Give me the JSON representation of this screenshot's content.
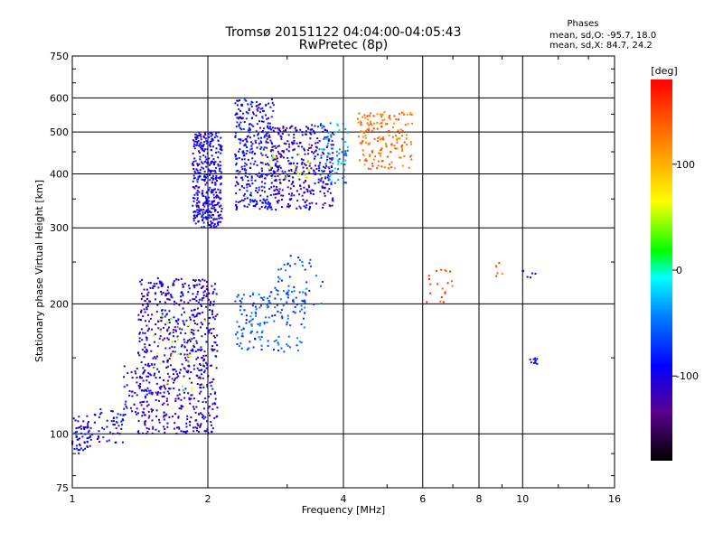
{
  "chart_data": {
    "type": "scatter",
    "title": "Tromsø 20151122 04:04:00-04:05:43",
    "subtitle": "RwPretec (8p)",
    "xlabel": "Frequency [MHz]",
    "ylabel": "Stationary phase Virtual Height [km]",
    "x_scale": "log",
    "y_scale": "log",
    "xlim": [
      1,
      16
    ],
    "ylim": [
      75,
      750
    ],
    "x_ticks": [
      1,
      2,
      4,
      6,
      8,
      10,
      16
    ],
    "x_tick_labels": [
      "1",
      "2",
      "4",
      "6",
      "8",
      "10",
      "16"
    ],
    "y_ticks": [
      75,
      100,
      200,
      300,
      400,
      500,
      600,
      750
    ],
    "y_tick_labels": [
      "75",
      "100",
      "200",
      "300",
      "400",
      "500",
      "600",
      "750"
    ],
    "grid": true,
    "annotation": {
      "title": "Phases",
      "line1": "mean, sd,O: -95.7, 18.0",
      "line2": "mean, sd,X:  84.7, 24.2"
    },
    "colorbar": {
      "label": "[deg]",
      "range": [
        -180,
        180
      ],
      "ticks": [
        100,
        0,
        -100
      ],
      "tick_labels": [
        "100",
        "0",
        "-100"
      ]
    },
    "clusters": [
      {
        "f": [
          1.0,
          1.1
        ],
        "h": [
          90,
          110
        ],
        "phase": -100,
        "n": 60
      },
      {
        "f": [
          1.1,
          1.3
        ],
        "h": [
          95,
          115
        ],
        "phase": -95,
        "n": 50
      },
      {
        "f": [
          1.3,
          1.5
        ],
        "h": [
          110,
          145
        ],
        "phase": -100,
        "n": 50
      },
      {
        "f": [
          1.4,
          2.1
        ],
        "h": [
          100,
          230
        ],
        "phase": -105,
        "n": 700
      },
      {
        "f": [
          1.5,
          2.0
        ],
        "h": [
          125,
          190
        ],
        "phase": 60,
        "n": 40
      },
      {
        "f": [
          1.85,
          2.15
        ],
        "h": [
          300,
          500
        ],
        "phase": -100,
        "n": 400
      },
      {
        "f": [
          2.3,
          2.8
        ],
        "h": [
          330,
          600
        ],
        "phase": -95,
        "n": 350
      },
      {
        "f": [
          2.8,
          3.8
        ],
        "h": [
          330,
          520
        ],
        "phase": -110,
        "n": 350
      },
      {
        "f": [
          2.6,
          3.4
        ],
        "h": [
          390,
          470
        ],
        "phase": 60,
        "n": 30
      },
      {
        "f": [
          3.5,
          4.1
        ],
        "h": [
          380,
          530
        ],
        "phase": -40,
        "n": 80
      },
      {
        "f": [
          2.3,
          3.3
        ],
        "h": [
          155,
          215
        ],
        "phase": -60,
        "n": 140
      },
      {
        "f": [
          2.7,
          3.6
        ],
        "h": [
          195,
          260
        ],
        "phase": -60,
        "n": 60
      },
      {
        "f": [
          4.3,
          5.7
        ],
        "h": [
          410,
          560
        ],
        "phase": 130,
        "n": 170
      },
      {
        "f": [
          6.1,
          7.0
        ],
        "h": [
          200,
          240
        ],
        "phase": 150,
        "n": 20
      },
      {
        "f": [
          10.3,
          11.0
        ],
        "h": [
          145,
          150
        ],
        "phase": -100,
        "n": 10
      },
      {
        "f": [
          8.6,
          9.2
        ],
        "h": [
          230,
          250
        ],
        "phase": 140,
        "n": 6
      },
      {
        "f": [
          10.0,
          10.8
        ],
        "h": [
          230,
          240
        ],
        "phase": -110,
        "n": 6
      }
    ]
  }
}
